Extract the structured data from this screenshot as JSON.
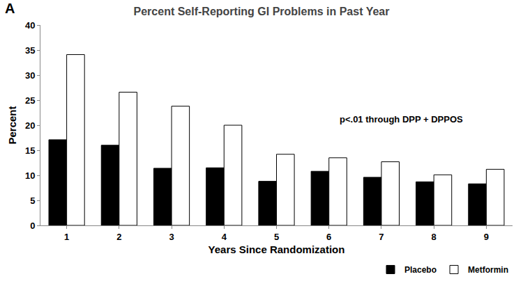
{
  "chart_data": {
    "type": "bar",
    "title": "Percent Self-Reporting GI Problems in Past Year",
    "x_label": "Years Since Randomization",
    "y_label": "Percent",
    "annotations": [
      "A",
      "p<.01 through DPP + DPPOS"
    ],
    "categories": [
      "1",
      "2",
      "3",
      "4",
      "5",
      "6",
      "7",
      "8",
      "9"
    ],
    "series": [
      {
        "name": "Placebo",
        "color": "#000000",
        "values": [
          17.1,
          16.0,
          11.4,
          11.5,
          8.8,
          10.8,
          9.6,
          8.7,
          8.3
        ]
      },
      {
        "name": "Metformin",
        "color": "#ffffff",
        "values": [
          34.1,
          26.6,
          23.8,
          20.0,
          14.2,
          13.5,
          12.7,
          10.1,
          11.2
        ]
      }
    ],
    "ylim": [
      0,
      40
    ],
    "yticks": [
      0,
      5,
      10,
      15,
      20,
      25,
      30,
      35,
      40
    ],
    "grid": false,
    "legend": "bottom right"
  }
}
